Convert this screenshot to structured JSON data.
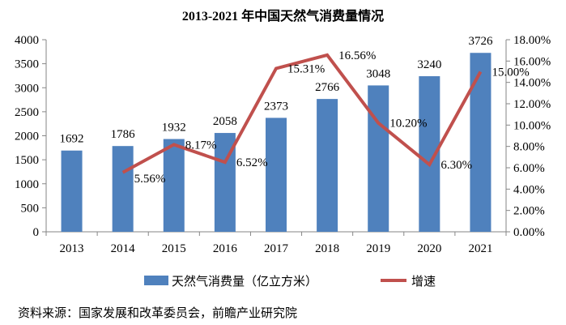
{
  "chart_data": {
    "type": "bar+line",
    "title": "2013-2021 年中国天然气消费量情况",
    "categories": [
      "2013",
      "2014",
      "2015",
      "2016",
      "2017",
      "2018",
      "2019",
      "2020",
      "2021"
    ],
    "series": [
      {
        "name": "天然气消费量（亿立方米）",
        "type": "bar",
        "axis": "left",
        "color": "#4F81BD",
        "values": [
          1692,
          1786,
          1932,
          2058,
          2373,
          2766,
          3048,
          3240,
          3726
        ]
      },
      {
        "name": "增速",
        "type": "line",
        "axis": "right",
        "color": "#C0504D",
        "values": [
          null,
          5.56,
          8.17,
          6.52,
          15.31,
          16.56,
          10.2,
          6.3,
          15.0
        ],
        "labels": [
          "",
          "5.56%",
          "8.17%",
          "6.52%",
          "15.31%",
          "16.56%",
          "10.20%",
          "6.30%",
          "15.00%"
        ]
      }
    ],
    "left_axis": {
      "ylim": [
        0,
        4000
      ],
      "ticks": [
        "0",
        "500",
        "1000",
        "1500",
        "2000",
        "2500",
        "3000",
        "3500",
        "4000"
      ]
    },
    "right_axis": {
      "ylim": [
        0,
        18
      ],
      "ticks": [
        "0.00%",
        "2.00%",
        "4.00%",
        "6.00%",
        "8.00%",
        "10.00%",
        "12.00%",
        "14.00%",
        "16.00%",
        "18.00%"
      ]
    },
    "legend_placement": "bottom",
    "grid": false
  },
  "source": "资料来源：国家发展和改革委员会，前瞻产业研究院"
}
